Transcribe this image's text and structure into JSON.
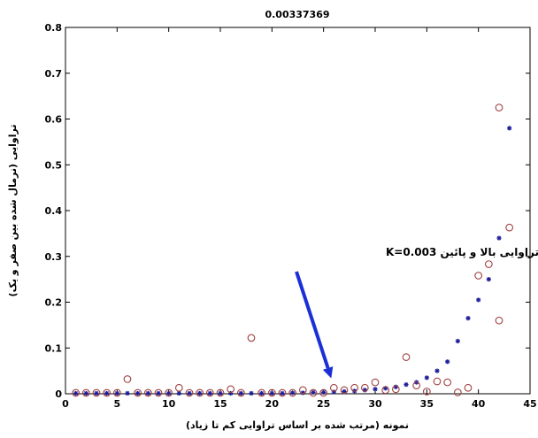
{
  "chart_data": {
    "type": "scatter",
    "title": "0.00337369",
    "xlabel": "نمونه (مرتب شده بر اساس تراوایی کم تا زیاد)",
    "ylabel": "تراوایی (نرمال شده بین صفر و یک)",
    "xlim": [
      0,
      45
    ],
    "ylim": [
      0,
      0.8
    ],
    "x_ticks": [
      0,
      5,
      10,
      15,
      20,
      25,
      30,
      35,
      40,
      45
    ],
    "y_ticks": [
      0,
      0.1,
      0.2,
      0.3,
      0.4,
      0.5,
      0.6,
      0.7,
      0.8
    ],
    "grid": false,
    "colors": {
      "series_1": "#1f1f9a",
      "series_2": "#a04040",
      "arrow": "#1a2fd6"
    },
    "series": [
      {
        "marker": "star",
        "x": [
          1,
          2,
          3,
          4,
          5,
          6,
          7,
          8,
          9,
          10,
          11,
          12,
          13,
          14,
          15,
          16,
          17,
          18,
          19,
          20,
          21,
          22,
          23,
          24,
          25,
          26,
          27,
          28,
          29,
          30,
          31,
          32,
          33,
          34,
          35,
          36,
          37,
          38,
          39,
          40,
          41,
          42,
          43
        ],
        "y": [
          0.001,
          0.001,
          0.001,
          0.001,
          0.001,
          0.001,
          0.001,
          0.001,
          0.001,
          0.001,
          0.001,
          0.001,
          0.001,
          0.001,
          0.001,
          0.001,
          0.001,
          0.001,
          0.001,
          0.001,
          0.001,
          0.002,
          0.002,
          0.003,
          0.003,
          0.004,
          0.005,
          0.006,
          0.008,
          0.01,
          0.012,
          0.015,
          0.02,
          0.025,
          0.035,
          0.05,
          0.07,
          0.115,
          0.165,
          0.205,
          0.25,
          0.34,
          0.58
        ]
      },
      {
        "marker": "circle",
        "x": [
          1,
          2,
          3,
          4,
          5,
          6,
          7,
          8,
          9,
          10,
          11,
          12,
          13,
          14,
          15,
          16,
          17,
          18,
          19,
          20,
          21,
          22,
          23,
          24,
          25,
          26,
          27,
          28,
          29,
          30,
          31,
          32,
          33,
          34,
          35,
          36,
          37,
          38,
          39,
          40,
          41,
          42,
          42,
          43
        ],
        "y": [
          0.002,
          0.002,
          0.002,
          0.002,
          0.002,
          0.032,
          0.002,
          0.002,
          0.002,
          0.002,
          0.013,
          0.002,
          0.002,
          0.002,
          0.002,
          0.01,
          0.002,
          0.122,
          0.002,
          0.002,
          0.002,
          0.002,
          0.008,
          0.002,
          0.002,
          0.013,
          0.008,
          0.013,
          0.013,
          0.025,
          0.008,
          0.01,
          0.08,
          0.018,
          0.005,
          0.027,
          0.025,
          0.003,
          0.013,
          0.258,
          0.283,
          0.625,
          0.16,
          0.363
        ]
      }
    ],
    "annotations": [
      {
        "text": "مرز تراوایی بالا و پائین  K=0.003",
        "arrow_to_x": 26,
        "arrow_to_y": 0.003
      }
    ]
  }
}
